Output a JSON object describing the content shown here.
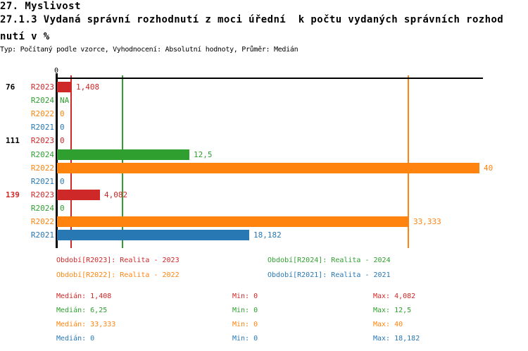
{
  "header": {
    "line1": "27. Myslivost",
    "line2": "27.1.3 Vydaná správní rozhodnutí z moci úřední  k počtu vydaných správních rozhod",
    "line3": "nutí v %",
    "meta": "Typ: Počítaný podle vzorce, Vyhodnocení: Absolutní hodnoty, Průměr: Medián"
  },
  "colors": {
    "R2023": "#CE2828",
    "R2024": "#2FA02F",
    "R2022": "#FF840F",
    "R2021": "#2878B4",
    "axis": "#000000"
  },
  "chart_data": {
    "type": "bar",
    "orientation": "horizontal",
    "value_unit": "%",
    "xlim": [
      0,
      40
    ],
    "axis_zero_label": "0",
    "grid": "median-lines-per-series",
    "groups": [
      {
        "label": "76",
        "label_color": "#000000",
        "rows": [
          {
            "series": "R2023",
            "value": 1.408,
            "display": "1,408"
          },
          {
            "series": "R2024",
            "value": null,
            "display": "NA"
          },
          {
            "series": "R2022",
            "value": 0,
            "display": "0"
          },
          {
            "series": "R2021",
            "value": 0,
            "display": "0"
          }
        ]
      },
      {
        "label": "111",
        "label_color": "#000000",
        "rows": [
          {
            "series": "R2023",
            "value": 0,
            "display": "0"
          },
          {
            "series": "R2024",
            "value": 12.5,
            "display": "12,5"
          },
          {
            "series": "R2022",
            "value": 40,
            "display": "40"
          },
          {
            "series": "R2021",
            "value": 0,
            "display": "0"
          }
        ]
      },
      {
        "label": "139",
        "label_color": "#CE2828",
        "rows": [
          {
            "series": "R2023",
            "value": 4.082,
            "display": "4,082"
          },
          {
            "series": "R2024",
            "value": 0,
            "display": "0"
          },
          {
            "series": "R2022",
            "value": 33.333,
            "display": "33,333"
          },
          {
            "series": "R2021",
            "value": 18.182,
            "display": "18,182"
          }
        ]
      }
    ],
    "median_lines": [
      {
        "series": "R2023",
        "value": 1.408
      },
      {
        "series": "R2024",
        "value": 6.25
      },
      {
        "series": "R2022",
        "value": 33.333
      },
      {
        "series": "R2021",
        "value": 0
      }
    ]
  },
  "legend": {
    "items": [
      {
        "series": "R2023",
        "text": "Období[R2023]: Realita - 2023"
      },
      {
        "series": "R2024",
        "text": "Období[R2024]: Realita - 2024"
      },
      {
        "series": "R2022",
        "text": "Období[R2022]: Realita - 2022"
      },
      {
        "series": "R2021",
        "text": "Období[R2021]: Realita - 2021"
      }
    ]
  },
  "stats": {
    "rows": [
      {
        "series": "R2023",
        "median": "Medián: 1,408",
        "min": "Min: 0",
        "max": "Max: 4,082"
      },
      {
        "series": "R2024",
        "median": "Medián: 6,25",
        "min": "Min: 0",
        "max": "Max: 12,5"
      },
      {
        "series": "R2022",
        "median": "Medián: 33,333",
        "min": "Min: 0",
        "max": "Max: 40"
      },
      {
        "series": "R2021",
        "median": "Medián: 0",
        "min": "Min: 0",
        "max": "Max: 18,182"
      }
    ]
  }
}
